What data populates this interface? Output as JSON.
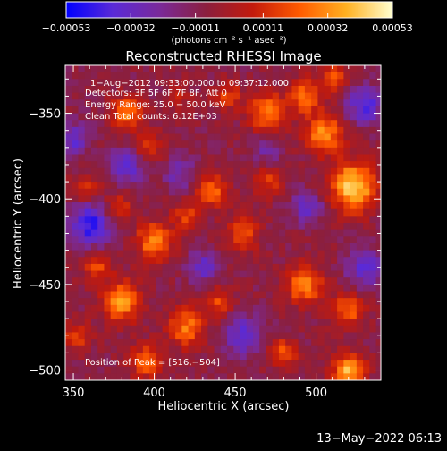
{
  "chart_data": {
    "type": "heatmap",
    "title": "Reconstructed RHESSI Image",
    "xlabel": "Heliocentric X (arcsec)",
    "ylabel": "Heliocentric Y (arcsec)",
    "xlim": [
      345,
      540
    ],
    "ylim": [
      -506,
      -322
    ],
    "x_ticks": [
      350,
      400,
      450,
      500
    ],
    "y_ticks": [
      -350,
      -400,
      -450,
      -500
    ],
    "colorbar": {
      "vmin": -0.00053,
      "vmax": 0.00053,
      "ticks": [
        -0.00053,
        -0.00032,
        -0.00011,
        0.00011,
        0.00032,
        0.00053
      ],
      "tick_labels": [
        "−0.00053",
        "−0.00032",
        "−0.00011",
        "0.00011",
        "0.00032",
        "0.00053"
      ],
      "unit_label": "(photons cm⁻² s⁻¹ asec⁻²)",
      "stops": [
        "#0000ff",
        "#5a2ad8",
        "#7a2a9a",
        "#8b1f3e",
        "#c31a0c",
        "#ff5a00",
        "#ffb020",
        "#ffffd0"
      ]
    },
    "annotations": [
      "1−Aug−2012 09:33:00.000 to 09:37:12.000",
      "Detectors: 3F 5F 6F 7F 8F, Att 0",
      "Energy Range: 25.0 − 50.0 keV",
      "Clean    Total counts: 6.12E+03"
    ],
    "peak_label": "Position of Peak = [516,−504]",
    "peak": [
      516,
      -504
    ],
    "hotspots": [
      {
        "x": 523,
        "y": -393,
        "v": 0.00053,
        "s": 10
      },
      {
        "x": 505,
        "y": -362,
        "v": 0.0004,
        "s": 8
      },
      {
        "x": 470,
        "y": -350,
        "v": 0.00036,
        "s": 8
      },
      {
        "x": 493,
        "y": -340,
        "v": 0.00032,
        "s": 7
      },
      {
        "x": 512,
        "y": -330,
        "v": 0.00028,
        "s": 6
      },
      {
        "x": 383,
        "y": -350,
        "v": 0.00034,
        "s": 7
      },
      {
        "x": 395,
        "y": -372,
        "v": 0.00026,
        "s": 7
      },
      {
        "x": 378,
        "y": -405,
        "v": 0.00022,
        "s": 6
      },
      {
        "x": 400,
        "y": -425,
        "v": 0.00036,
        "s": 8
      },
      {
        "x": 420,
        "y": -410,
        "v": 0.00024,
        "s": 6
      },
      {
        "x": 436,
        "y": -395,
        "v": 0.0003,
        "s": 7
      },
      {
        "x": 455,
        "y": -420,
        "v": 0.00028,
        "s": 7
      },
      {
        "x": 380,
        "y": -460,
        "v": 0.00042,
        "s": 8
      },
      {
        "x": 365,
        "y": -440,
        "v": 0.00026,
        "s": 6
      },
      {
        "x": 420,
        "y": -475,
        "v": 0.00034,
        "s": 8
      },
      {
        "x": 440,
        "y": -460,
        "v": 0.00024,
        "s": 6
      },
      {
        "x": 493,
        "y": -450,
        "v": 0.00038,
        "s": 8
      },
      {
        "x": 520,
        "y": -465,
        "v": 0.0003,
        "s": 7
      },
      {
        "x": 520,
        "y": -500,
        "v": 0.00046,
        "s": 7
      },
      {
        "x": 480,
        "y": -490,
        "v": 0.00028,
        "s": 6
      },
      {
        "x": 395,
        "y": -495,
        "v": 0.0003,
        "s": 7
      },
      {
        "x": 352,
        "y": -480,
        "v": 0.00024,
        "s": 6
      },
      {
        "x": 470,
        "y": -390,
        "v": 0.00022,
        "s": 6
      },
      {
        "x": 358,
        "y": -395,
        "v": 0.0002,
        "s": 6
      },
      {
        "x": 445,
        "y": -340,
        "v": 0.00024,
        "s": 6
      },
      {
        "x": 415,
        "y": -340,
        "v": 0.00018,
        "s": 5
      }
    ],
    "coldspots": [
      {
        "x": 360,
        "y": -415,
        "v": -0.00038,
        "s": 9
      },
      {
        "x": 385,
        "y": -380,
        "v": -0.0003,
        "s": 8
      },
      {
        "x": 350,
        "y": -365,
        "v": -0.00026,
        "s": 7
      },
      {
        "x": 530,
        "y": -345,
        "v": -0.00032,
        "s": 8
      },
      {
        "x": 530,
        "y": -440,
        "v": -0.00028,
        "s": 8
      },
      {
        "x": 455,
        "y": -480,
        "v": -0.0003,
        "s": 8
      },
      {
        "x": 430,
        "y": -440,
        "v": -0.00024,
        "s": 7
      },
      {
        "x": 415,
        "y": -385,
        "v": -0.0002,
        "s": 7
      },
      {
        "x": 470,
        "y": -370,
        "v": -0.00018,
        "s": 6
      },
      {
        "x": 495,
        "y": -405,
        "v": -0.00024,
        "s": 7
      }
    ]
  },
  "footer": {
    "timestamp": "13−May−2022 06:13"
  }
}
